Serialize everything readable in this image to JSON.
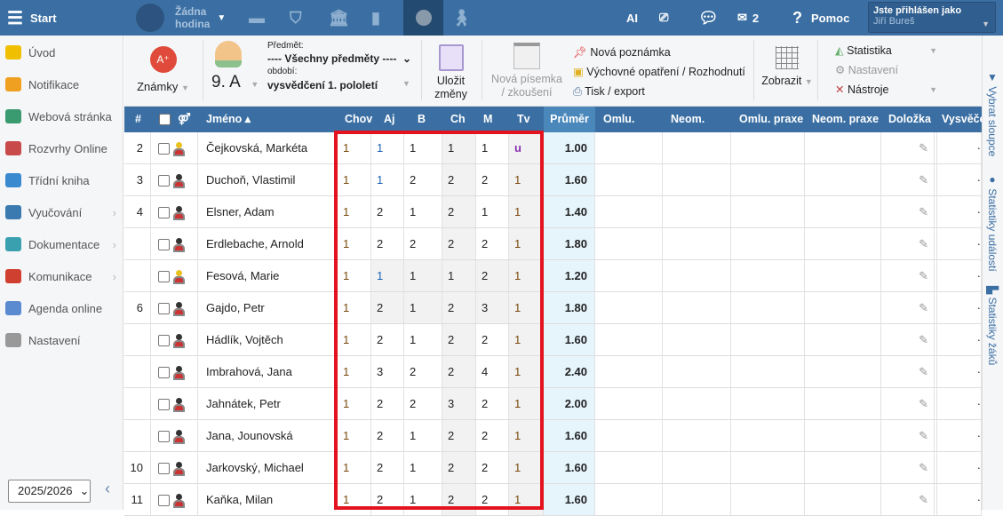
{
  "topbar": {
    "start": "Start",
    "lesson_line1": "Žádna",
    "lesson_line2": "hodina",
    "ai": "AI",
    "mail_count": "2",
    "help": "Pomoc",
    "logged_as": "Jste přihlášen jako",
    "user": "Jiří Bureš"
  },
  "sidebar": {
    "items": [
      {
        "label": "Úvod",
        "icon": "star-icon",
        "color": "#f0c000"
      },
      {
        "label": "Notifikace",
        "icon": "envelope-icon",
        "color": "#f0a020"
      },
      {
        "label": "Webová stránka",
        "icon": "home-icon",
        "color": "#3a9a70"
      },
      {
        "label": "Rozvrhy Online",
        "icon": "calendar-icon",
        "color": "#c84a4a"
      },
      {
        "label": "Třídní kniha",
        "icon": "book-icon",
        "color": "#3a8ad0"
      },
      {
        "label": "Vyučování",
        "icon": "open-book-icon",
        "color": "#3a7ab0",
        "sub": true
      },
      {
        "label": "Dokumentace",
        "icon": "document-icon",
        "color": "#3aa0b0",
        "sub": true
      },
      {
        "label": "Komunikace",
        "icon": "chat-icon",
        "color": "#d04030",
        "sub": true
      },
      {
        "label": "Agenda online",
        "icon": "pen-icon",
        "color": "#5a8ad0"
      },
      {
        "label": "Nastavení",
        "icon": "gear-icon",
        "color": "#999"
      }
    ],
    "year": "2025/2026"
  },
  "toolbar": {
    "grades": "Známky",
    "class": "9. A",
    "subject_label": "Předmět:",
    "subject": "---- Všechny předměty ----",
    "period_label": "období:",
    "period": "vysvědčení 1. pololetí",
    "save1": "Uložit",
    "save2": "změny",
    "new_test1": "Nová písemka",
    "new_test2": "/ zkoušení",
    "new_note": "Nová poznámka",
    "measure": "Výchovné opatření / Rozhodnutí",
    "print": "Tisk / export",
    "show": "Zobrazit",
    "stats": "Statistika",
    "settings": "Nastavení",
    "tools": "Nástroje"
  },
  "right_panel": {
    "select_columns": "Vybrat sloupce",
    "event_stats": "Statistiky událostí",
    "student_stats": "Statistiky žáků"
  },
  "table": {
    "headers": {
      "num": "#",
      "name": "Jméno ▴",
      "subjects": [
        "Chov",
        "Aj",
        "B",
        "Ch",
        "M",
        "Tv"
      ],
      "avg": "Průměr",
      "omlu": "Omlu.",
      "neom": "Neom.",
      "omlu_praxe": "Omlu. praxe",
      "neom_praxe": "Neom. praxe",
      "dolozka": "Doložka",
      "vysv": "Vysvěče"
    },
    "rows": [
      {
        "num": "2",
        "name": "Čejkovská, Markéta",
        "gender": "f",
        "grades": [
          "1",
          "1",
          "1",
          "1",
          "1",
          "u"
        ],
        "avg": "1.00"
      },
      {
        "num": "3",
        "name": "Duchoň, Vlastimil",
        "gender": "m",
        "grades": [
          "1",
          "1",
          "2",
          "2",
          "2",
          "1"
        ],
        "avg": "1.60"
      },
      {
        "num": "4",
        "name": "Elsner, Adam",
        "gender": "m",
        "grades": [
          "1",
          "2",
          "1",
          "2",
          "1",
          "1"
        ],
        "avg": "1.40"
      },
      {
        "num": "",
        "name": "Erdlebache, Arnold",
        "gender": "m",
        "grades": [
          "1",
          "2",
          "2",
          "2",
          "2",
          "1"
        ],
        "avg": "1.80"
      },
      {
        "num": "",
        "name": "Fesová, Marie",
        "gender": "f",
        "grades": [
          "1",
          "1",
          "1",
          "1",
          "2",
          "1"
        ],
        "avg": "1.20"
      },
      {
        "num": "6",
        "name": "Gajdo, Petr",
        "gender": "m",
        "grades": [
          "1",
          "2",
          "1",
          "2",
          "3",
          "1"
        ],
        "avg": "1.80"
      },
      {
        "num": "",
        "name": "Hádlík, Vojtěch",
        "gender": "m",
        "grades": [
          "1",
          "2",
          "1",
          "2",
          "2",
          "1"
        ],
        "avg": "1.60"
      },
      {
        "num": "",
        "name": "Imbrahová, Jana",
        "gender": "m",
        "grades": [
          "1",
          "3",
          "2",
          "2",
          "4",
          "1"
        ],
        "avg": "2.40"
      },
      {
        "num": "",
        "name": "Jahnátek, Petr",
        "gender": "m",
        "grades": [
          "1",
          "2",
          "2",
          "3",
          "2",
          "1"
        ],
        "avg": "2.00"
      },
      {
        "num": "",
        "name": "Jana, Jounovská",
        "gender": "m",
        "grades": [
          "1",
          "2",
          "1",
          "2",
          "2",
          "1"
        ],
        "avg": "1.60"
      },
      {
        "num": "10",
        "name": "Jarkovský, Michael",
        "gender": "m",
        "grades": [
          "1",
          "2",
          "1",
          "2",
          "2",
          "1"
        ],
        "avg": "1.60"
      },
      {
        "num": "11",
        "name": "Kaňka, Milan",
        "gender": "m",
        "grades": [
          "1",
          "2",
          "1",
          "2",
          "2",
          "1"
        ],
        "avg": "1.60"
      }
    ]
  },
  "colors": {
    "topbar": "#3b6fa3",
    "highlight": "#e3141f",
    "avg_bg": "#e6f5fc"
  }
}
